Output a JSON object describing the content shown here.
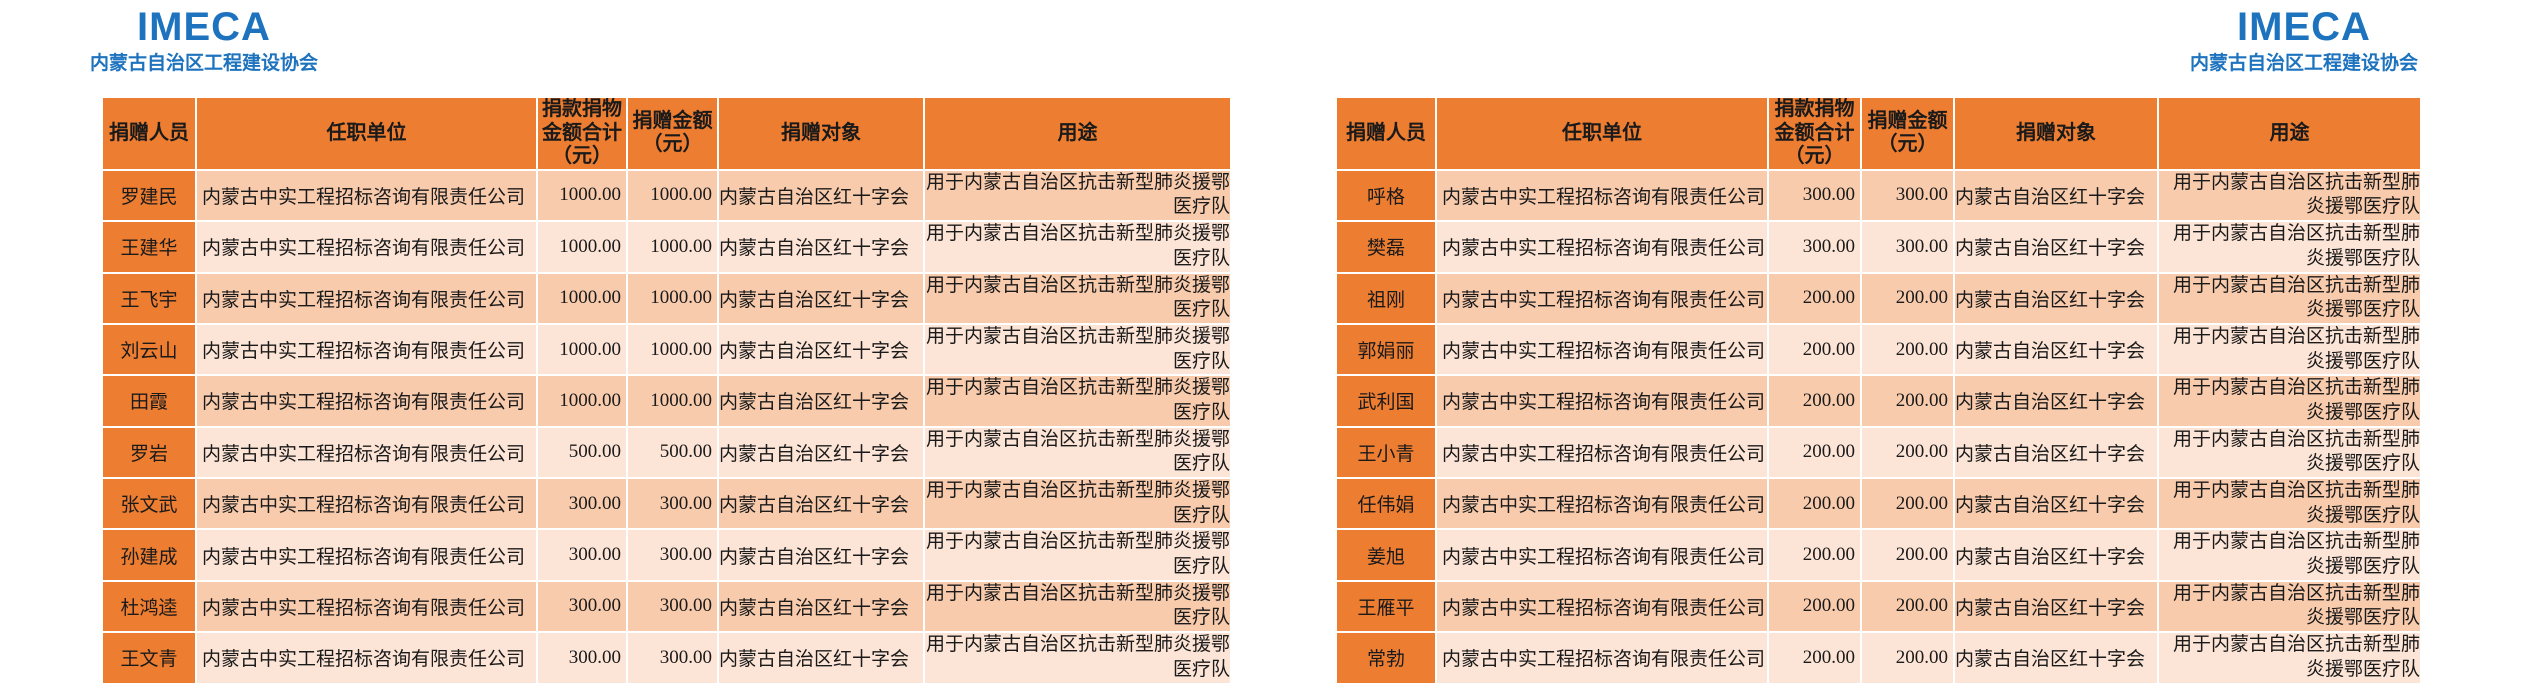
{
  "brand": {
    "logo": "IMECA",
    "subtitle": "内蒙古自治区工程建设协会"
  },
  "colors": {
    "brand_blue": "#1E73BE",
    "accent_orange": "#ED7D31",
    "row_dark": "#F8CBAD",
    "row_light": "#FCE4D6",
    "grid_white": "#FFFFFF"
  },
  "columns": [
    {
      "label": "捐赠人员"
    },
    {
      "label": "任职单位"
    },
    {
      "label": "捐款捐物金额合计（元）"
    },
    {
      "label": "捐赠金额（元）"
    },
    {
      "label": "捐赠对象"
    },
    {
      "label": "用途"
    }
  ],
  "tables": {
    "left": {
      "rows": [
        {
          "name": "罗建民",
          "org": "内蒙古中实工程招标咨询有限责任公司",
          "total": "1000.00",
          "amount": "1000.00",
          "recipient": "内蒙古自治区红十字会",
          "purpose": "用于内蒙古自治区抗击新型肺炎援鄂医疗队"
        },
        {
          "name": "王建华",
          "org": "内蒙古中实工程招标咨询有限责任公司",
          "total": "1000.00",
          "amount": "1000.00",
          "recipient": "内蒙古自治区红十字会",
          "purpose": "用于内蒙古自治区抗击新型肺炎援鄂医疗队"
        },
        {
          "name": "王飞宇",
          "org": "内蒙古中实工程招标咨询有限责任公司",
          "total": "1000.00",
          "amount": "1000.00",
          "recipient": "内蒙古自治区红十字会",
          "purpose": "用于内蒙古自治区抗击新型肺炎援鄂医疗队"
        },
        {
          "name": "刘云山",
          "org": "内蒙古中实工程招标咨询有限责任公司",
          "total": "1000.00",
          "amount": "1000.00",
          "recipient": "内蒙古自治区红十字会",
          "purpose": "用于内蒙古自治区抗击新型肺炎援鄂医疗队"
        },
        {
          "name": "田霞",
          "org": "内蒙古中实工程招标咨询有限责任公司",
          "total": "1000.00",
          "amount": "1000.00",
          "recipient": "内蒙古自治区红十字会",
          "purpose": "用于内蒙古自治区抗击新型肺炎援鄂医疗队"
        },
        {
          "name": "罗岩",
          "org": "内蒙古中实工程招标咨询有限责任公司",
          "total": "500.00",
          "amount": "500.00",
          "recipient": "内蒙古自治区红十字会",
          "purpose": "用于内蒙古自治区抗击新型肺炎援鄂医疗队"
        },
        {
          "name": "张文武",
          "org": "内蒙古中实工程招标咨询有限责任公司",
          "total": "300.00",
          "amount": "300.00",
          "recipient": "内蒙古自治区红十字会",
          "purpose": "用于内蒙古自治区抗击新型肺炎援鄂医疗队"
        },
        {
          "name": "孙建成",
          "org": "内蒙古中实工程招标咨询有限责任公司",
          "total": "300.00",
          "amount": "300.00",
          "recipient": "内蒙古自治区红十字会",
          "purpose": "用于内蒙古自治区抗击新型肺炎援鄂医疗队"
        },
        {
          "name": "杜鸿逵",
          "org": "内蒙古中实工程招标咨询有限责任公司",
          "total": "300.00",
          "amount": "300.00",
          "recipient": "内蒙古自治区红十字会",
          "purpose": "用于内蒙古自治区抗击新型肺炎援鄂医疗队"
        },
        {
          "name": "王文青",
          "org": "内蒙古中实工程招标咨询有限责任公司",
          "total": "300.00",
          "amount": "300.00",
          "recipient": "内蒙古自治区红十字会",
          "purpose": "用于内蒙古自治区抗击新型肺炎援鄂医疗队"
        }
      ]
    },
    "right": {
      "rows": [
        {
          "name": "呼格",
          "org": "内蒙古中实工程招标咨询有限责任公司",
          "total": "300.00",
          "amount": "300.00",
          "recipient": "内蒙古自治区红十字会",
          "purpose": "用于内蒙古自治区抗击新型肺炎援鄂医疗队"
        },
        {
          "name": "樊磊",
          "org": "内蒙古中实工程招标咨询有限责任公司",
          "total": "300.00",
          "amount": "300.00",
          "recipient": "内蒙古自治区红十字会",
          "purpose": "用于内蒙古自治区抗击新型肺炎援鄂医疗队"
        },
        {
          "name": "祖刚",
          "org": "内蒙古中实工程招标咨询有限责任公司",
          "total": "200.00",
          "amount": "200.00",
          "recipient": "内蒙古自治区红十字会",
          "purpose": "用于内蒙古自治区抗击新型肺炎援鄂医疗队"
        },
        {
          "name": "郭娟丽",
          "org": "内蒙古中实工程招标咨询有限责任公司",
          "total": "200.00",
          "amount": "200.00",
          "recipient": "内蒙古自治区红十字会",
          "purpose": "用于内蒙古自治区抗击新型肺炎援鄂医疗队"
        },
        {
          "name": "武利国",
          "org": "内蒙古中实工程招标咨询有限责任公司",
          "total": "200.00",
          "amount": "200.00",
          "recipient": "内蒙古自治区红十字会",
          "purpose": "用于内蒙古自治区抗击新型肺炎援鄂医疗队"
        },
        {
          "name": "王小青",
          "org": "内蒙古中实工程招标咨询有限责任公司",
          "total": "200.00",
          "amount": "200.00",
          "recipient": "内蒙古自治区红十字会",
          "purpose": "用于内蒙古自治区抗击新型肺炎援鄂医疗队"
        },
        {
          "name": "任伟娟",
          "org": "内蒙古中实工程招标咨询有限责任公司",
          "total": "200.00",
          "amount": "200.00",
          "recipient": "内蒙古自治区红十字会",
          "purpose": "用于内蒙古自治区抗击新型肺炎援鄂医疗队"
        },
        {
          "name": "姜旭",
          "org": "内蒙古中实工程招标咨询有限责任公司",
          "total": "200.00",
          "amount": "200.00",
          "recipient": "内蒙古自治区红十字会",
          "purpose": "用于内蒙古自治区抗击新型肺炎援鄂医疗队"
        },
        {
          "name": "王雁平",
          "org": "内蒙古中实工程招标咨询有限责任公司",
          "total": "200.00",
          "amount": "200.00",
          "recipient": "内蒙古自治区红十字会",
          "purpose": "用于内蒙古自治区抗击新型肺炎援鄂医疗队"
        },
        {
          "name": "常勃",
          "org": "内蒙古中实工程招标咨询有限责任公司",
          "total": "200.00",
          "amount": "200.00",
          "recipient": "内蒙古自治区红十字会",
          "purpose": "用于内蒙古自治区抗击新型肺炎援鄂医疗队"
        }
      ]
    }
  }
}
